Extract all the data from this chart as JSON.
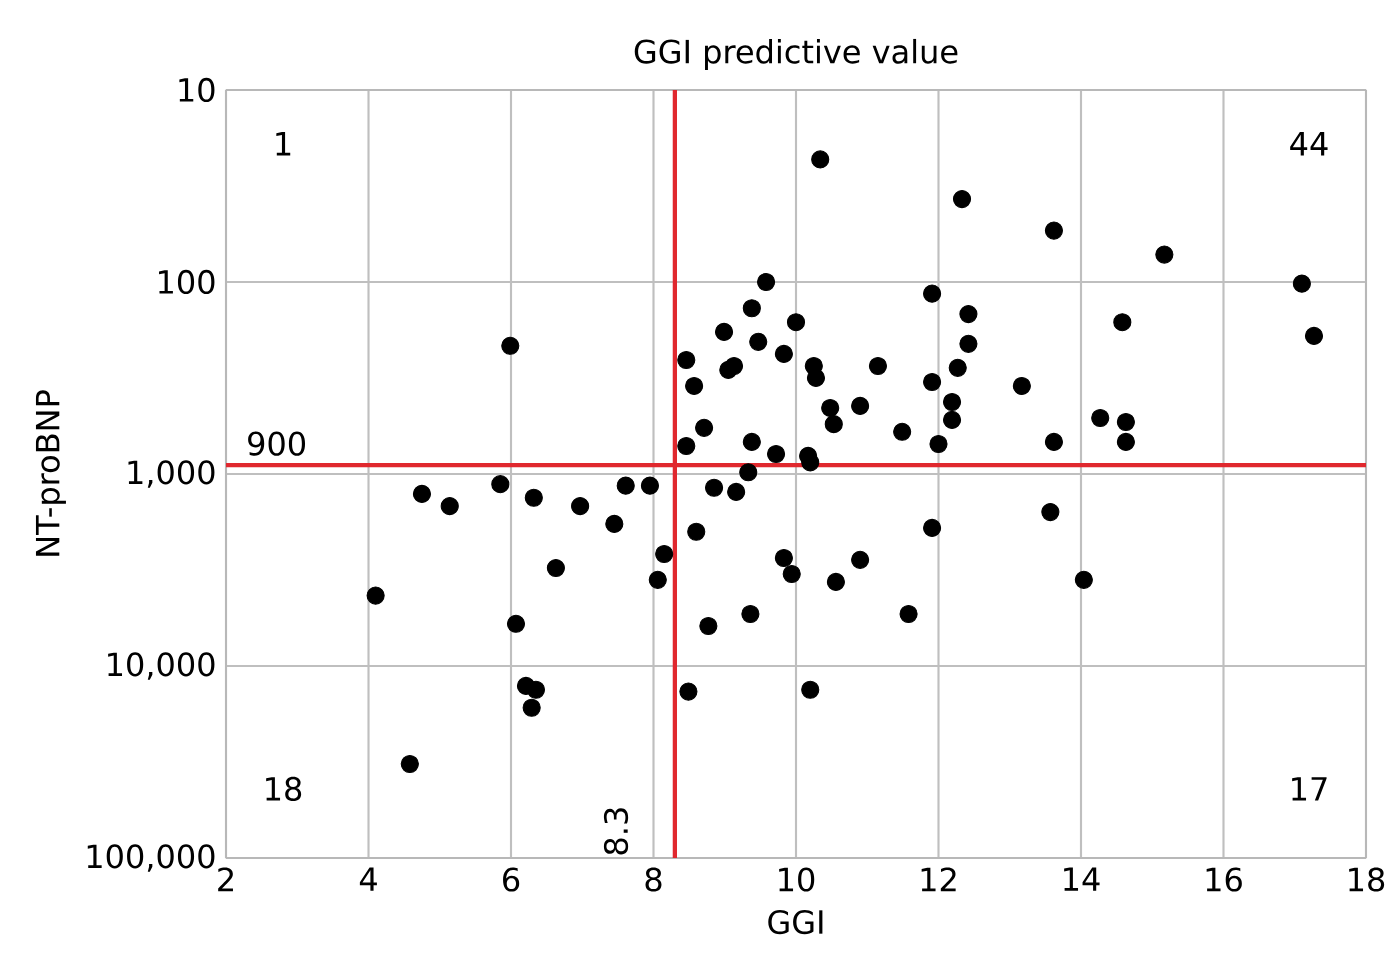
{
  "chart_data": {
    "type": "scatter",
    "title": "GGI predictive value",
    "xlabel": "GGI",
    "ylabel": "NT-proBNP",
    "xlim": [
      2,
      18
    ],
    "xticks": [
      2,
      4,
      6,
      8,
      10,
      12,
      14,
      16,
      18
    ],
    "ylim": [
      100000,
      10
    ],
    "log": "y",
    "yticks": [
      10,
      100,
      {
        "value": 1000,
        "label": "1,000"
      },
      {
        "value": 10000,
        "label": "10,000"
      },
      {
        "value": 100000,
        "label": "100,000"
      }
    ],
    "grid": true,
    "marker": "circle",
    "ref_lines": [
      {
        "axis": "x",
        "value": 8.3,
        "label": "8.3",
        "color": "#e0282e"
      },
      {
        "axis": "y",
        "value": 900,
        "label": "900",
        "color": "#e0282e"
      }
    ],
    "annotations": [
      "1",
      "44",
      "18",
      "17"
    ],
    "series": [
      {
        "color": "#000000",
        "x": [
          4.1,
          4.75,
          5.14,
          5.85,
          5.99,
          6.32,
          6.97,
          7.61,
          7.95,
          7.45,
          6.63,
          8.15,
          8.06,
          6.07,
          6.21,
          6.35,
          6.29,
          4.58,
          10.34,
          12.33,
          9.58,
          11.91,
          12.42,
          9.38,
          8.99,
          10.0,
          9.47,
          12.42,
          8.46,
          9.83,
          9.05,
          9.13,
          10.25,
          10.28,
          11.15,
          12.27,
          8.57,
          11.91,
          10.48,
          10.9,
          10.53,
          12.19,
          12.19,
          8.71,
          11.49,
          8.46,
          9.38,
          12.0,
          9.72,
          10.17,
          10.2,
          9.33,
          8.85,
          9.16,
          8.6,
          11.91,
          9.83,
          9.94,
          10.56,
          10.9,
          8.77,
          9.36,
          11.58,
          8.49,
          10.2,
          13.62,
          15.17,
          17.1,
          17.27,
          14.58,
          13.17,
          14.27,
          14.63,
          14.63,
          13.62,
          13.57,
          14.04
        ],
        "values": [
          4300,
          1270,
          1470,
          1130,
          215,
          1330,
          1470,
          1150,
          1150,
          1820,
          3090,
          2610,
          3560,
          6030,
          12700,
          13300,
          16500,
          32400,
          23,
          37,
          100,
          115,
          147,
          137,
          182,
          162,
          205,
          210,
          255,
          237,
          287,
          274,
          274,
          316,
          274,
          280,
          348,
          332,
          453,
          442,
          550,
          422,
          523,
          575,
          603,
          715,
          681,
          698,
          787,
          805,
          870,
          980,
          1180,
          1240,
          2000,
          1910,
          2740,
          3320,
          3650,
          2800,
          6190,
          5360,
          5360,
          13600,
          13300,
          54,
          72,
          102,
          191,
          162,
          348,
          511,
          536,
          681,
          681,
          1580,
          3560
        ]
      }
    ]
  }
}
